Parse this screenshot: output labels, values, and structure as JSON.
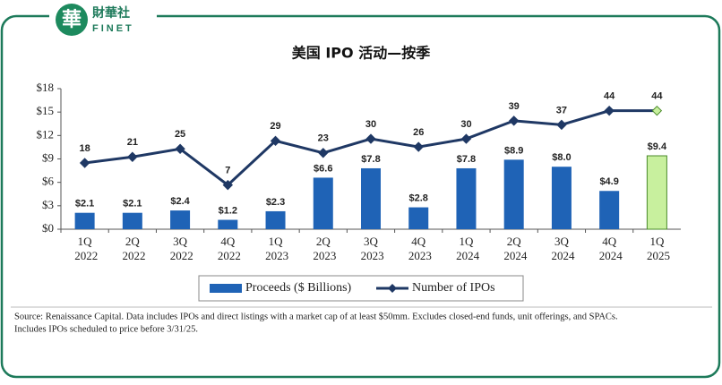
{
  "header": {
    "logo_mark": "華",
    "brand_cn": "財華社",
    "brand_en": "FINET"
  },
  "chart_data": {
    "type": "bar",
    "title": "美国 IPO 活动—按季",
    "categories": [
      "1Q 2022",
      "2Q 2022",
      "3Q 2022",
      "4Q 2022",
      "1Q 2023",
      "2Q 2023",
      "3Q 2023",
      "4Q 2023",
      "1Q 2024",
      "2Q 2024",
      "3Q 2024",
      "4Q 2024",
      "1Q 2025"
    ],
    "series": [
      {
        "name": "Proceeds ($ Billions)",
        "type": "bar",
        "color": "#1f63b6",
        "last_color": "#c8f09e",
        "values": [
          2.1,
          2.1,
          2.4,
          1.2,
          2.3,
          6.6,
          7.8,
          2.8,
          7.8,
          8.9,
          8.0,
          4.9,
          9.4
        ],
        "value_labels": [
          "$2.1",
          "$2.1",
          "$2.4",
          "$1.2",
          "$2.3",
          "$6.6",
          "$7.8",
          "$2.8",
          "$7.8",
          "$8.9",
          "$8.0",
          "$4.9",
          "$9.4"
        ]
      },
      {
        "name": "Number of IPOs",
        "type": "line",
        "axis": "y2",
        "color": "#1f3864",
        "last_color": "#c8f09e",
        "values": [
          18,
          21,
          25,
          7,
          29,
          23,
          30,
          26,
          30,
          39,
          37,
          44,
          44
        ]
      }
    ],
    "ylim": [
      0,
      18
    ],
    "yticks": [
      {
        "value": 0,
        "label": "$0"
      },
      {
        "value": 3,
        "label": "$3"
      },
      {
        "value": 6,
        "label": "$6"
      },
      {
        "value": 9,
        "label": "$9"
      },
      {
        "value": 12,
        "label": "$12"
      },
      {
        "value": 15,
        "label": "$15"
      },
      {
        "value": 18,
        "label": "$18"
      }
    ],
    "y2lim": [
      -15,
      55
    ],
    "source": [
      "Source: Renaissance Capital. Data includes IPOs and direct listings with a market cap of at least $50mm. Excludes closed-end funds, unit offerings, and SPACs.",
      "Includes IPOs scheduled to price before 3/31/25."
    ]
  }
}
